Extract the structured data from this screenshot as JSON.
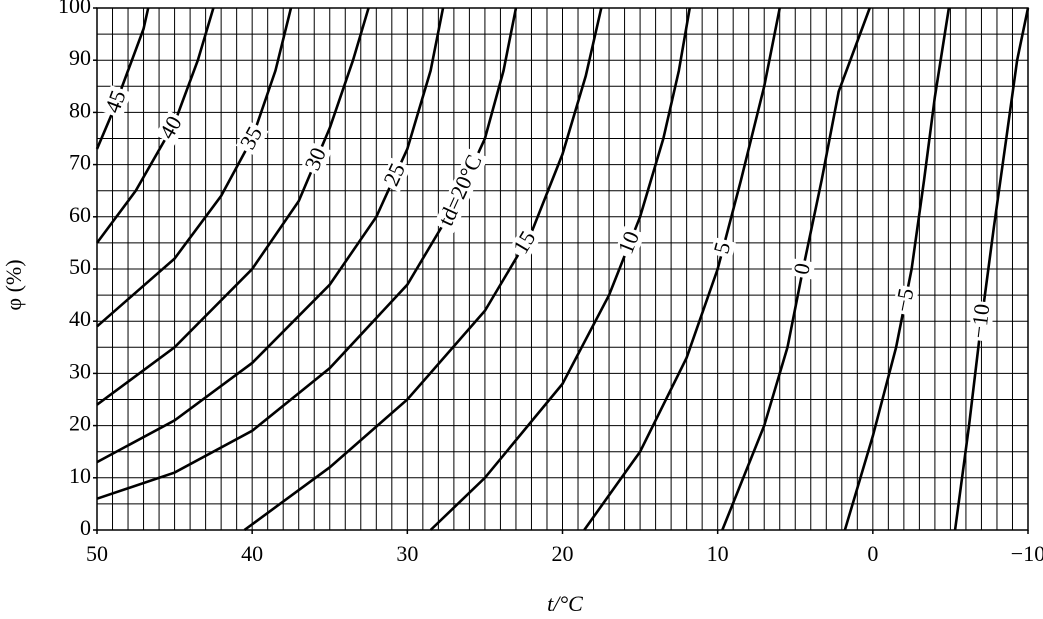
{
  "chart_data": {
    "type": "line",
    "x_label": "t/°C",
    "y_label": "φ (%)",
    "xlim": [
      50,
      -10
    ],
    "ylim": [
      0,
      100
    ],
    "xticks": [
      50,
      40,
      30,
      20,
      10,
      0,
      {
        "value": -10,
        "label": "−10"
      }
    ],
    "yticks": [
      0,
      10,
      20,
      30,
      40,
      50,
      60,
      70,
      80,
      90,
      100
    ],
    "grid": true,
    "xgrid_step": 1,
    "ygrid_step": 5,
    "color": "#000000",
    "series": [
      {
        "name": "45",
        "x": [
          50,
          49,
          48,
          47,
          46.7
        ],
        "values": [
          73,
          80,
          88,
          96,
          100
        ]
      },
      {
        "name": "40",
        "x": [
          50,
          47.5,
          45,
          43.5,
          42.5
        ],
        "values": [
          55,
          65,
          78,
          90,
          100
        ]
      },
      {
        "name": "35",
        "x": [
          50,
          45,
          42,
          40,
          38.5,
          37.5
        ],
        "values": [
          39,
          52,
          64,
          75,
          88,
          100
        ]
      },
      {
        "name": "30",
        "x": [
          50,
          45,
          40,
          37,
          35,
          33.5,
          32.5
        ],
        "values": [
          24,
          35,
          50,
          63,
          77,
          90,
          100
        ]
      },
      {
        "name": "25",
        "x": [
          50,
          45,
          40,
          35,
          32,
          30,
          28.5,
          27.7
        ],
        "values": [
          13,
          21,
          32,
          47,
          60,
          73,
          88,
          100
        ]
      },
      {
        "name": "td=20°C",
        "x": [
          50,
          45,
          40,
          35,
          30,
          27,
          25,
          23.8,
          23
        ],
        "values": [
          6,
          11,
          19,
          31,
          47,
          62,
          75,
          88,
          100
        ]
      },
      {
        "name": "15",
        "x": [
          40.5,
          35,
          30,
          25,
          22,
          20,
          18.5,
          17.5
        ],
        "values": [
          0,
          12,
          25,
          42,
          57,
          72,
          87,
          100
        ]
      },
      {
        "name": "10",
        "x": [
          28.5,
          25,
          20,
          17,
          15,
          13.5,
          12.5,
          11.8
        ],
        "values": [
          0,
          10,
          28,
          45,
          60,
          75,
          88,
          100
        ]
      },
      {
        "name": "5",
        "x": [
          18.6,
          15,
          12,
          10,
          8.5,
          7,
          6
        ],
        "values": [
          0,
          15,
          33,
          50,
          67,
          85,
          100
        ]
      },
      {
        "name": "0",
        "x": [
          9.7,
          7,
          5.5,
          4.5,
          3.3,
          2.2,
          0.2
        ],
        "values": [
          0,
          20,
          35,
          50,
          67,
          84,
          100
        ]
      },
      {
        "name": "−5",
        "x": [
          1.8,
          0,
          -1.5,
          -2.5,
          -3.3,
          -4,
          -4.9
        ],
        "values": [
          0,
          18,
          35,
          50,
          67,
          83,
          100
        ]
      },
      {
        "name": "−10",
        "x": [
          -5.3,
          -6.2,
          -7,
          -7.8,
          -8.6,
          -9.3,
          -10
        ],
        "values": [
          0,
          20,
          40,
          58,
          75,
          90,
          100
        ]
      }
    ]
  }
}
